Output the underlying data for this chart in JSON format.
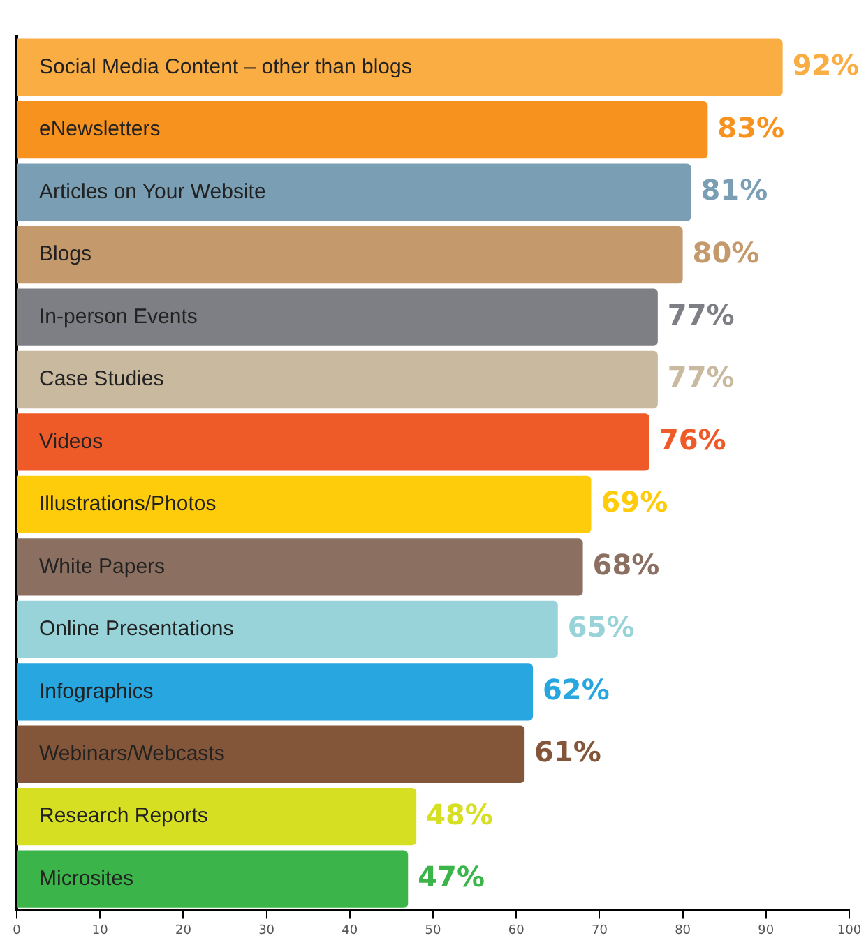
{
  "chart_data": {
    "type": "bar",
    "orientation": "horizontal",
    "categories": [
      "Social Media Content – other than blogs",
      "eNewsletters",
      "Articles on Your Website",
      "Blogs",
      "In-person Events",
      "Case Studies",
      "Videos",
      "Illustrations/Photos",
      "White Papers",
      "Online Presentations",
      "Infographics",
      "Webinars/Webcasts",
      "Research Reports",
      "Microsites"
    ],
    "values": [
      92,
      83,
      81,
      80,
      77,
      77,
      76,
      69,
      68,
      65,
      62,
      61,
      48,
      47
    ],
    "value_labels": [
      "92%",
      "83%",
      "81%",
      "80%",
      "77%",
      "77%",
      "76%",
      "69%",
      "68%",
      "65%",
      "62%",
      "61%",
      "48%",
      "47%"
    ],
    "colors": [
      "#f9ad42",
      "#f7921e",
      "#7a9fb5",
      "#c49a6c",
      "#7d7f84",
      "#c9b99e",
      "#ef5a29",
      "#fecc0a",
      "#8b7061",
      "#98d3da",
      "#27a6df",
      "#845639",
      "#d7df23",
      "#3bb44a"
    ],
    "xlim": [
      0,
      100
    ],
    "xticks": [
      0,
      10,
      20,
      30,
      40,
      50,
      60,
      70,
      80,
      90,
      100
    ],
    "grid": false,
    "legend": false
  }
}
